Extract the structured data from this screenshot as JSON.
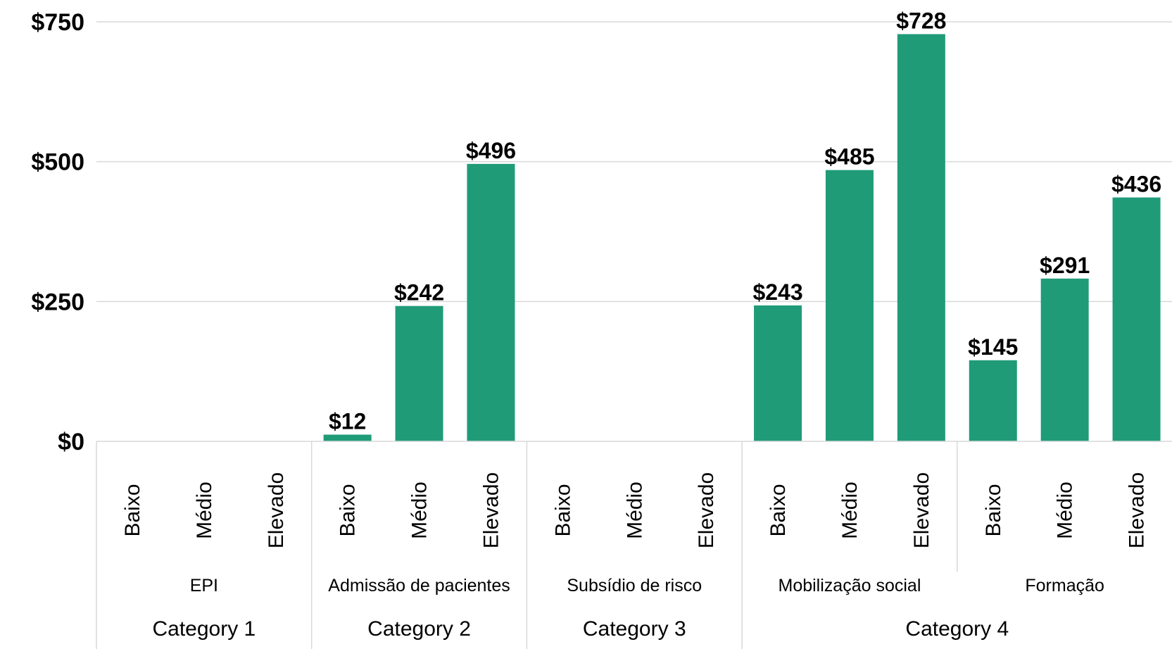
{
  "chart_data": {
    "type": "bar",
    "bar_color": "#1f9b78",
    "ylim": [
      0,
      750
    ],
    "yticks": [
      "$0",
      "$250",
      "$500",
      "$750"
    ],
    "ytick_values": [
      0,
      250,
      500,
      750
    ],
    "grid": true,
    "groups": [
      {
        "category": "Category 1",
        "subgroups": [
          {
            "label": "EPI",
            "bars": [
              {
                "level": "Baixo",
                "value": 0,
                "label": ""
              },
              {
                "level": "Médio",
                "value": 0,
                "label": ""
              },
              {
                "level": "Elevado",
                "value": 0,
                "label": ""
              }
            ]
          }
        ]
      },
      {
        "category": "Category 2",
        "subgroups": [
          {
            "label": "Admissão de pacientes",
            "bars": [
              {
                "level": "Baixo",
                "value": 12,
                "label": "$12"
              },
              {
                "level": "Médio",
                "value": 242,
                "label": "$242"
              },
              {
                "level": "Elevado",
                "value": 496,
                "label": "$496"
              }
            ]
          }
        ]
      },
      {
        "category": "Category 3",
        "subgroups": [
          {
            "label": "Subsídio de risco",
            "bars": [
              {
                "level": "Baixo",
                "value": 0,
                "label": ""
              },
              {
                "level": "Médio",
                "value": 0,
                "label": ""
              },
              {
                "level": "Elevado",
                "value": 0,
                "label": ""
              }
            ]
          }
        ]
      },
      {
        "category": "Category 4",
        "subgroups": [
          {
            "label": "Mobilização social",
            "bars": [
              {
                "level": "Baixo",
                "value": 243,
                "label": "$243"
              },
              {
                "level": "Médio",
                "value": 485,
                "label": "$485"
              },
              {
                "level": "Elevado",
                "value": 728,
                "label": "$728"
              }
            ]
          },
          {
            "label": "Formação",
            "bars": [
              {
                "level": "Baixo",
                "value": 145,
                "label": "$145"
              },
              {
                "level": "Médio",
                "value": 291,
                "label": "$291"
              },
              {
                "level": "Elevado",
                "value": 436,
                "label": "$436"
              }
            ]
          }
        ]
      }
    ]
  }
}
